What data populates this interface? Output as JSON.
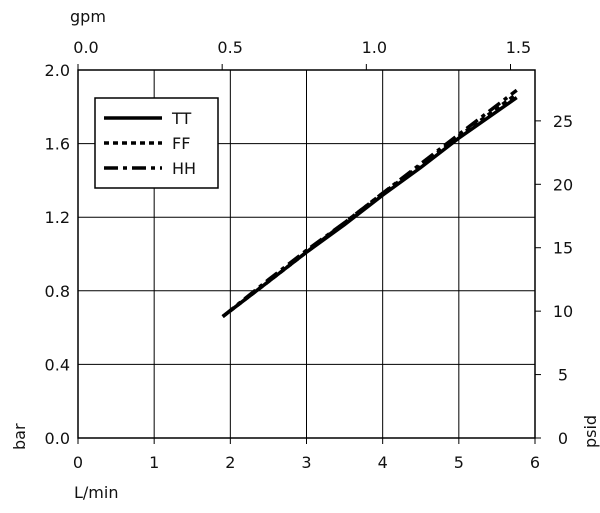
{
  "chart_data": {
    "type": "line",
    "xlabel": "L/min",
    "x2label": "gpm",
    "ylabel": "bar",
    "y2label": "psid",
    "x": [
      1.9,
      2.5,
      3,
      3.5,
      4,
      4.5,
      5,
      5.76
    ],
    "series": [
      {
        "name": "TT",
        "color": "#000000",
        "dash": "solid",
        "values": [
          0.66,
          0.85,
          1.01,
          1.16,
          1.32,
          1.47,
          1.63,
          1.85
        ]
      },
      {
        "name": "FF",
        "color": "#000000",
        "dash": "dotted",
        "values": [
          0.66,
          0.85,
          1.01,
          1.17,
          1.33,
          1.48,
          1.64,
          1.87
        ]
      },
      {
        "name": "HH",
        "color": "#000000",
        "dash": "dashdot",
        "values": [
          0.66,
          0.86,
          1.02,
          1.17,
          1.33,
          1.49,
          1.65,
          1.89
        ]
      }
    ],
    "xlim": [
      0,
      6
    ],
    "xticks": [
      0,
      1,
      2,
      3,
      4,
      5,
      6
    ],
    "x2lim": [
      0,
      1.585
    ],
    "x2ticks": [
      {
        "value": 0,
        "label": "0.0"
      },
      0.5,
      {
        "value": 1,
        "label": "1.0"
      },
      1.5
    ],
    "ylim": [
      0,
      2
    ],
    "yticks": [
      {
        "value": 0,
        "label": "0.0"
      },
      0.4,
      0.8,
      1.2,
      1.6,
      {
        "value": 2,
        "label": "2.0"
      }
    ],
    "y2lim": [
      0,
      29.01
    ],
    "y2ticks": [
      0,
      5,
      10,
      15,
      20,
      25
    ],
    "grid": true,
    "legend": "upper-left"
  }
}
